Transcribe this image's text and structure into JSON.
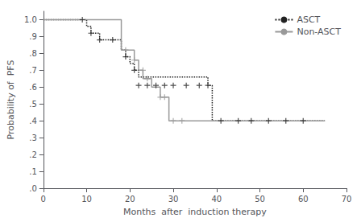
{
  "chart_data": {
    "type": "step",
    "xlabel": "Months  after  induction therapy",
    "ylabel": "Probability of  PFS",
    "xlim": [
      0,
      70
    ],
    "ylim": [
      0.0,
      1.05
    ],
    "xticks": [
      0,
      10,
      20,
      30,
      40,
      50,
      60,
      70
    ],
    "yticks": [
      {
        "value": 0.0,
        "label": ".0"
      },
      {
        "value": 0.1,
        "label": ".1"
      },
      {
        "value": 0.2,
        "label": ".2"
      },
      {
        "value": 0.3,
        "label": ".3"
      },
      {
        "value": 0.4,
        "label": ".4"
      },
      {
        "value": 0.5,
        "label": ".5"
      },
      {
        "value": 0.6,
        "label": ".6"
      },
      {
        "value": 0.7,
        "label": ".7"
      },
      {
        "value": 0.8,
        "label": ".8"
      },
      {
        "value": 0.9,
        "label": ".9"
      },
      {
        "value": 1.0,
        "label": "1.0"
      }
    ],
    "grid": false,
    "legend": "upper right",
    "series": [
      {
        "name": "ASCT",
        "color": "#222222",
        "line_style": "dotted",
        "marker": "plus",
        "x": [
          0,
          9,
          10,
          11,
          12,
          13,
          14,
          15,
          16,
          17,
          18,
          19,
          20,
          21,
          22,
          38,
          39,
          65
        ],
        "values": [
          1.0,
          1.0,
          0.96,
          0.92,
          0.92,
          0.88,
          0.88,
          0.88,
          0.88,
          0.88,
          0.82,
          0.78,
          0.74,
          0.7,
          0.66,
          0.61,
          0.4,
          0.4
        ],
        "censor_x": [
          9,
          11,
          13,
          16,
          19,
          21,
          22,
          24,
          26,
          28,
          30,
          33,
          36,
          38,
          41,
          45,
          48,
          52,
          56,
          60
        ],
        "censor_values": [
          1.0,
          0.92,
          0.88,
          0.88,
          0.78,
          0.7,
          0.61,
          0.61,
          0.61,
          0.61,
          0.61,
          0.61,
          0.61,
          0.61,
          0.4,
          0.4,
          0.4,
          0.4,
          0.4,
          0.4
        ]
      },
      {
        "name": "Non-ASCT",
        "color": "#999999",
        "line_style": "solid",
        "marker": "plus",
        "x": [
          0,
          12,
          18,
          20,
          21,
          22,
          23,
          25,
          27,
          28,
          29,
          35,
          65
        ],
        "values": [
          1.0,
          1.0,
          0.82,
          0.82,
          0.76,
          0.7,
          0.65,
          0.6,
          0.54,
          0.54,
          0.4,
          0.4,
          0.4
        ],
        "censor_x": [
          19,
          21,
          23,
          24,
          27,
          28,
          30,
          32
        ],
        "censor_values": [
          0.82,
          0.76,
          0.7,
          0.65,
          0.54,
          0.54,
          0.4,
          0.4
        ]
      }
    ]
  }
}
